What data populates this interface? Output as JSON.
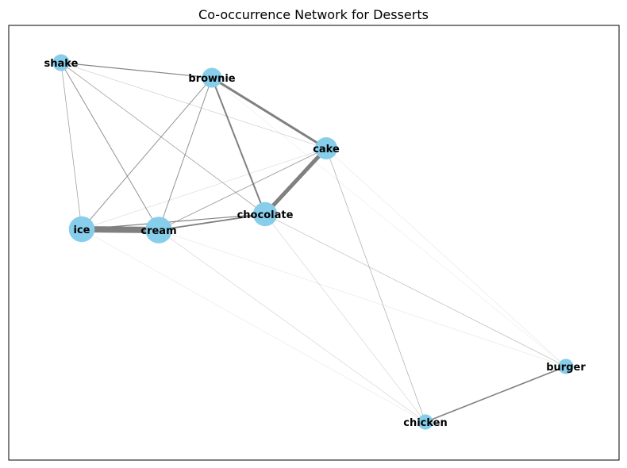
{
  "title": "Co-occurrence Network for Desserts",
  "colors": {
    "node": "#87ceeb",
    "edge": "#808080",
    "frame": "#000000"
  },
  "nodes": [
    {
      "id": "shake",
      "label": "shake",
      "weight": 1
    },
    {
      "id": "brownie",
      "label": "brownie",
      "weight": 2
    },
    {
      "id": "cake",
      "label": "cake",
      "weight": 3
    },
    {
      "id": "chocolate",
      "label": "chocolate",
      "weight": 4
    },
    {
      "id": "ice",
      "label": "ice",
      "weight": 5
    },
    {
      "id": "cream",
      "label": "cream",
      "weight": 5.5
    },
    {
      "id": "burger",
      "label": "burger",
      "weight": 0.6
    },
    {
      "id": "chicken",
      "label": "chicken",
      "weight": 0.6
    }
  ],
  "edges": [
    {
      "source": "ice",
      "target": "cream",
      "weight": 8
    },
    {
      "source": "chocolate",
      "target": "cake",
      "weight": 5
    },
    {
      "source": "brownie",
      "target": "cake",
      "weight": 3
    },
    {
      "source": "brownie",
      "target": "chocolate",
      "weight": 2
    },
    {
      "source": "cream",
      "target": "chocolate",
      "weight": 1.8
    },
    {
      "source": "burger",
      "target": "chicken",
      "weight": 1.6
    },
    {
      "source": "shake",
      "target": "brownie",
      "weight": 1.2
    },
    {
      "source": "ice",
      "target": "chocolate",
      "weight": 1.2
    },
    {
      "source": "brownie",
      "target": "ice",
      "weight": 1
    },
    {
      "source": "brownie",
      "target": "cream",
      "weight": 1
    },
    {
      "source": "shake",
      "target": "cream",
      "weight": 1
    },
    {
      "source": "shake",
      "target": "ice",
      "weight": 0.8
    },
    {
      "source": "shake",
      "target": "chocolate",
      "weight": 0.8
    },
    {
      "source": "cream",
      "target": "cake",
      "weight": 0.9
    },
    {
      "source": "cake",
      "target": "chicken",
      "weight": 0.7
    },
    {
      "source": "chocolate",
      "target": "burger",
      "weight": 0.6
    },
    {
      "source": "shake",
      "target": "cake",
      "weight": 0.5
    },
    {
      "source": "chocolate",
      "target": "chicken",
      "weight": 0.5
    },
    {
      "source": "cream",
      "target": "chicken",
      "weight": 0.5
    },
    {
      "source": "ice",
      "target": "cake",
      "weight": 0.4
    },
    {
      "source": "cake",
      "target": "burger",
      "weight": 0.35
    },
    {
      "source": "cream",
      "target": "burger",
      "weight": 0.3
    },
    {
      "source": "ice",
      "target": "chicken",
      "weight": 0.3
    },
    {
      "source": "brownie",
      "target": "burger",
      "weight": 0.25
    }
  ]
}
